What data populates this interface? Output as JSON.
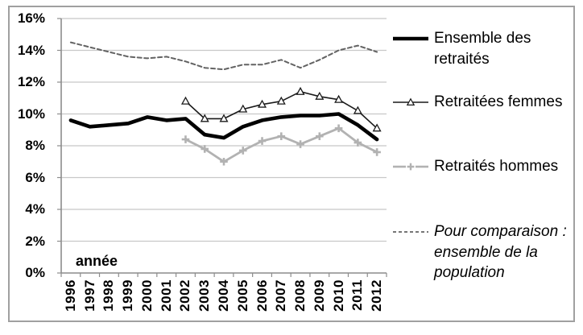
{
  "chart_data": {
    "type": "line",
    "title": "",
    "x_axis_label": "année",
    "x": [
      "1996",
      "1997",
      "1998",
      "1999",
      "2000",
      "2001",
      "2002",
      "2003",
      "2004",
      "2005",
      "2006",
      "2007",
      "2008",
      "2009",
      "2010",
      "2011",
      "2012"
    ],
    "y_ticks": [
      "0%",
      "2%",
      "4%",
      "6%",
      "8%",
      "10%",
      "12%",
      "14%",
      "16%"
    ],
    "ylim": [
      0,
      16
    ],
    "y_unit": "%",
    "grid": "horizontal",
    "legend_position": "right",
    "series": [
      {
        "name": "Ensemble des retraités",
        "color": "#000000",
        "line": "thick",
        "marker": "none",
        "values": [
          9.6,
          9.2,
          9.3,
          9.4,
          9.8,
          9.6,
          9.7,
          8.7,
          8.5,
          9.2,
          9.6,
          9.8,
          9.9,
          9.9,
          10.0,
          9.3,
          8.4
        ]
      },
      {
        "name": "Retraitées femmes",
        "color": "#1a1a1a",
        "line": "thin",
        "marker": "triangle",
        "values": [
          null,
          null,
          null,
          null,
          null,
          null,
          10.8,
          9.7,
          9.7,
          10.3,
          10.6,
          10.8,
          11.4,
          11.1,
          10.9,
          10.2,
          9.1
        ]
      },
      {
        "name": "Retraités hommes",
        "color": "#b2b2b2",
        "line": "medium",
        "marker": "plus",
        "values": [
          null,
          null,
          null,
          null,
          null,
          null,
          8.4,
          7.8,
          7.0,
          7.7,
          8.3,
          8.6,
          8.1,
          8.6,
          9.1,
          8.2,
          7.6
        ]
      },
      {
        "name": "Pour comparaison : ensemble de la population",
        "color": "#636363",
        "line": "dashed",
        "marker": "none",
        "values": [
          14.5,
          14.2,
          13.9,
          13.6,
          13.5,
          13.6,
          13.3,
          12.9,
          12.8,
          13.1,
          13.1,
          13.4,
          12.9,
          13.4,
          14.0,
          14.3,
          13.9
        ]
      }
    ]
  },
  "colors": {
    "gridline": "#c8c8c8",
    "axis": "#8c8c8c",
    "frame": "#a0a0a0",
    "text": "#000000",
    "marker_fill": "#ffffff"
  }
}
